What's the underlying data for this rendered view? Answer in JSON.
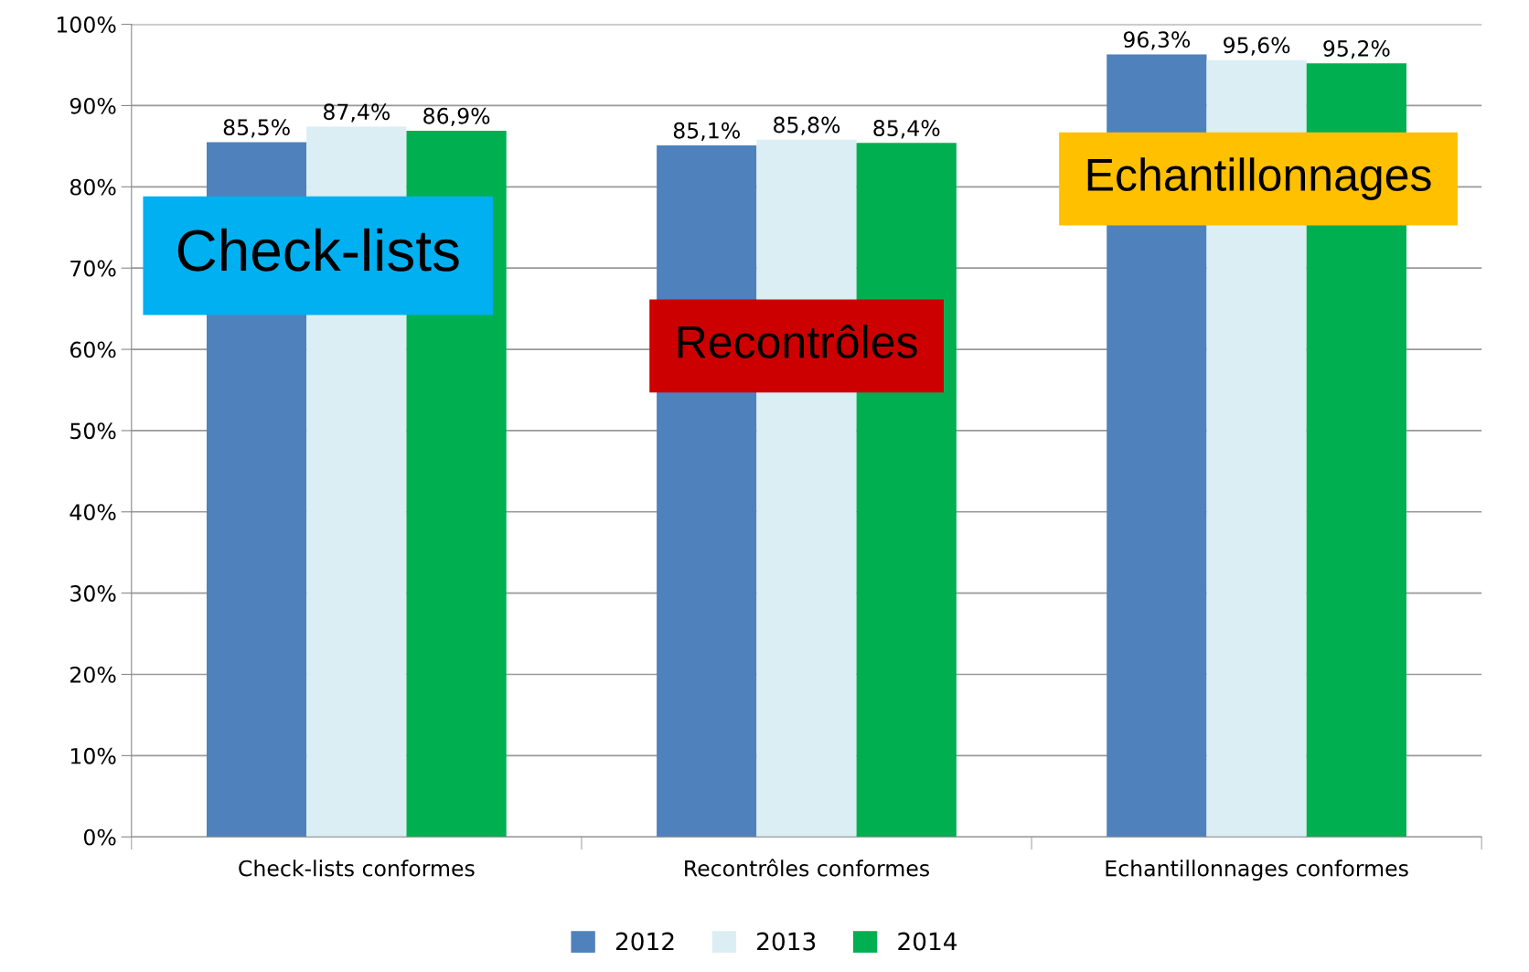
{
  "chart_data": {
    "type": "bar",
    "categories": [
      "Check-lists conformes",
      "Recontrôles conformes",
      "Echantillonnages conformes"
    ],
    "series": [
      {
        "name": "2012",
        "color": "#4f81bd",
        "values": [
          85.5,
          85.1,
          96.3
        ],
        "value_labels": [
          "85,5%",
          "85,1%",
          "96,3%"
        ]
      },
      {
        "name": "2013",
        "color": "#dbeef3",
        "values": [
          87.4,
          85.8,
          95.6
        ],
        "value_labels": [
          "87,4%",
          "85,8%",
          "95,6%"
        ]
      },
      {
        "name": "2014",
        "color": "#00b050",
        "values": [
          86.9,
          85.4,
          95.2
        ],
        "value_labels": [
          "86,9%",
          "85,4%",
          "95,2%"
        ]
      }
    ],
    "ylim": [
      0,
      100
    ],
    "yticks": [
      {
        "value": 0,
        "label": "0%"
      },
      {
        "value": 10,
        "label": "10%"
      },
      {
        "value": 20,
        "label": "20%"
      },
      {
        "value": 30,
        "label": "30%"
      },
      {
        "value": 40,
        "label": "40%"
      },
      {
        "value": 50,
        "label": "50%"
      },
      {
        "value": 60,
        "label": "60%"
      },
      {
        "value": 70,
        "label": "70%"
      },
      {
        "value": 80,
        "label": "80%"
      },
      {
        "value": 90,
        "label": "90%"
      },
      {
        "value": 100,
        "label": "100%"
      }
    ],
    "grid": "y",
    "legend": "bottom",
    "annotations": [
      "Check-lists",
      "Recontrôles",
      "Echantillonnages"
    ]
  }
}
